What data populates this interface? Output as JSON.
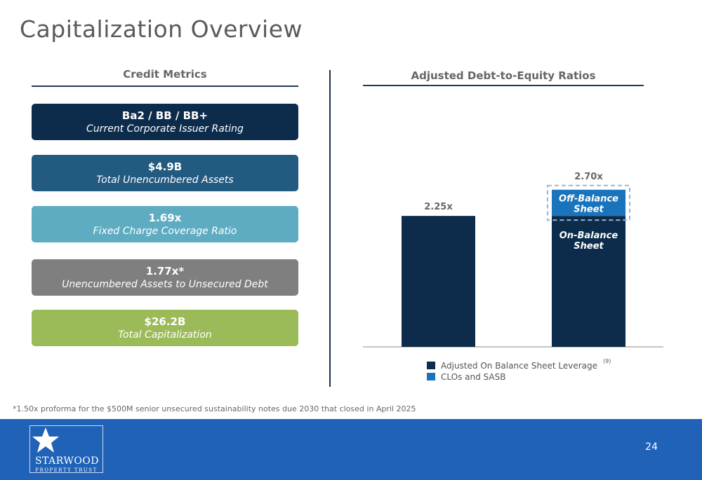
{
  "page": {
    "title": "Capitalization Overview",
    "page_number": "24",
    "footnote": "*1.50x proforma for the $500M senior unsecured sustainability notes due 2030 that closed in April 2025"
  },
  "credit_metrics": {
    "heading": "Credit Metrics",
    "items": [
      {
        "value": "Ba2 / BB / BB+",
        "label": "Current Corporate Issuer Rating",
        "color": "#0d2c4b"
      },
      {
        "value": "$4.9B",
        "label": "Total Unencumbered Assets",
        "color": "#235a80"
      },
      {
        "value": "1.69x",
        "label": "Fixed Charge Coverage Ratio",
        "color": "#5eacc2"
      },
      {
        "value": "1.77x*",
        "label": "Unencumbered Assets to Unsecured Debt",
        "color": "#7f7f7f"
      },
      {
        "value": "$26.2B",
        "label": "Total Capitalization",
        "color": "#9bbb59"
      }
    ]
  },
  "chart_data": {
    "type": "bar",
    "title": "Adjusted Debt-to-Equity Ratios",
    "stacked": true,
    "ylim": [
      0,
      2.95
    ],
    "bars": [
      {
        "total_label": "2.25x",
        "segments": [
          {
            "series": 0,
            "value": 2.25,
            "label": ""
          }
        ]
      },
      {
        "total_label": "2.70x",
        "segments": [
          {
            "series": 0,
            "value": 2.25,
            "label": "On-Balance Sheet"
          },
          {
            "series": 1,
            "value": 0.45,
            "label": "Off-Balance Sheet"
          }
        ],
        "highlight_top_segment": true
      }
    ],
    "series": [
      {
        "name": "Adjusted On Balance Sheet Leverage",
        "superscript": "(9)",
        "color": "#0d2c4b"
      },
      {
        "name": "CLOs and SASB",
        "superscript": "",
        "color": "#1a74bb"
      }
    ],
    "legend_position": "bottom",
    "grid": false
  },
  "colors": {
    "accent_navy": "#0d2c4b",
    "footer_blue": "#2062b8"
  },
  "logo": {
    "name": "STARWOOD",
    "subtitle": "PROPERTY TRUST",
    "icon": "star-icon"
  }
}
